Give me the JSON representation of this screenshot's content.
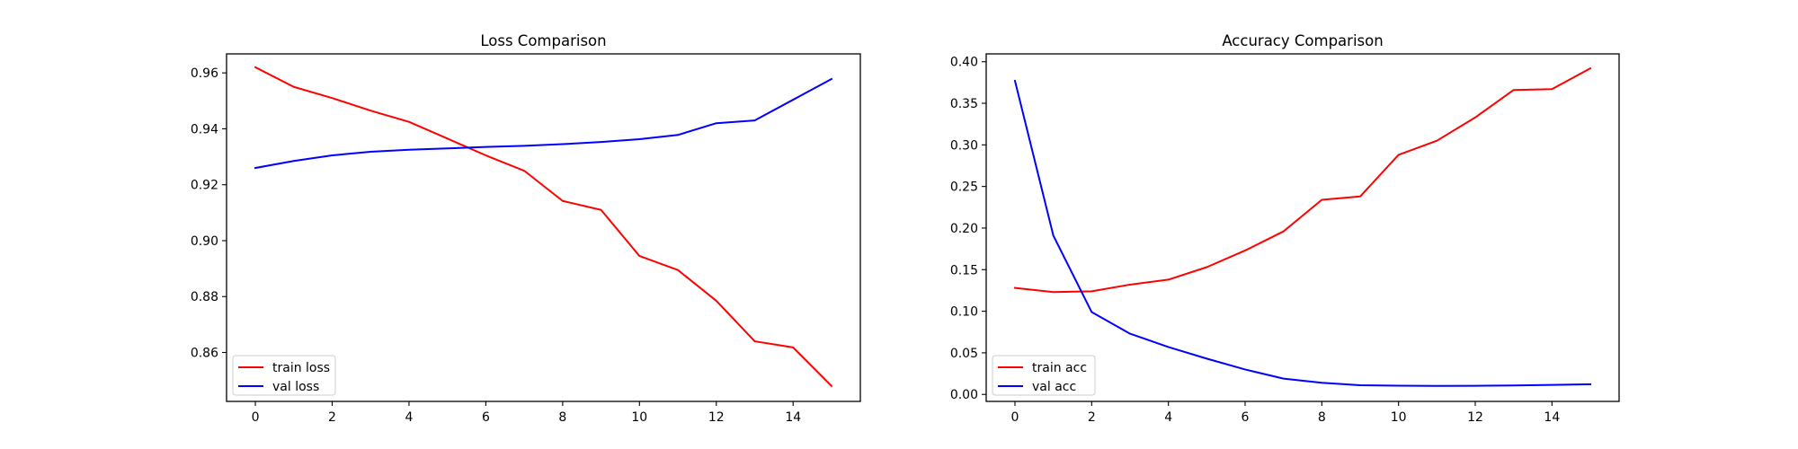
{
  "chart_data": [
    {
      "type": "line",
      "title": "Loss Comparison",
      "xlabel": "",
      "ylabel": "",
      "xlim": [
        -0.75,
        15.75
      ],
      "ylim": [
        0.8425,
        0.9668
      ],
      "xticks": [
        0,
        2,
        4,
        6,
        8,
        10,
        12,
        14
      ],
      "yticks": [
        0.86,
        0.88,
        0.9,
        0.92,
        0.94,
        0.96
      ],
      "ytick_labels": [
        "0.86",
        "0.88",
        "0.90",
        "0.92",
        "0.94",
        "0.96"
      ],
      "grid": false,
      "legend_position": "lower-left",
      "x": [
        0,
        1,
        2,
        3,
        4,
        5,
        6,
        7,
        8,
        9,
        10,
        11,
        12,
        13,
        14,
        15
      ],
      "series": [
        {
          "name": "train loss",
          "color": "#ff0000",
          "values": [
            0.962,
            0.955,
            0.951,
            0.9465,
            0.9425,
            0.9365,
            0.9305,
            0.925,
            0.9142,
            0.911,
            0.8945,
            0.8895,
            0.8785,
            0.864,
            0.8618,
            0.848
          ]
        },
        {
          "name": "val loss",
          "color": "#0000ff",
          "values": [
            0.926,
            0.9285,
            0.9305,
            0.9318,
            0.9325,
            0.933,
            0.9335,
            0.9339,
            0.9345,
            0.9353,
            0.9363,
            0.9378,
            0.942,
            0.943,
            0.9504,
            0.9578
          ]
        }
      ]
    },
    {
      "type": "line",
      "title": "Accuracy Comparison",
      "xlabel": "",
      "ylabel": "",
      "xlim": [
        -0.75,
        15.75
      ],
      "ylim": [
        -0.0084,
        0.4094
      ],
      "xticks": [
        0,
        2,
        4,
        6,
        8,
        10,
        12,
        14
      ],
      "yticks": [
        0.0,
        0.05,
        0.1,
        0.15,
        0.2,
        0.25,
        0.3,
        0.35,
        0.4
      ],
      "ytick_labels": [
        "0.00",
        "0.05",
        "0.10",
        "0.15",
        "0.20",
        "0.25",
        "0.30",
        "0.35",
        "0.40"
      ],
      "grid": false,
      "legend_position": "lower-left",
      "x": [
        0,
        1,
        2,
        3,
        4,
        5,
        6,
        7,
        8,
        9,
        10,
        11,
        12,
        13,
        14,
        15
      ],
      "series": [
        {
          "name": "train acc",
          "color": "#ff0000",
          "values": [
            0.128,
            0.123,
            0.124,
            0.132,
            0.138,
            0.153,
            0.173,
            0.196,
            0.234,
            0.238,
            0.288,
            0.305,
            0.333,
            0.366,
            0.367,
            0.392
          ]
        },
        {
          "name": "val acc",
          "color": "#0000ff",
          "values": [
            0.377,
            0.191,
            0.099,
            0.073,
            0.057,
            0.043,
            0.03,
            0.019,
            0.014,
            0.011,
            0.0105,
            0.0102,
            0.0104,
            0.0107,
            0.0115,
            0.0123
          ]
        }
      ]
    }
  ]
}
